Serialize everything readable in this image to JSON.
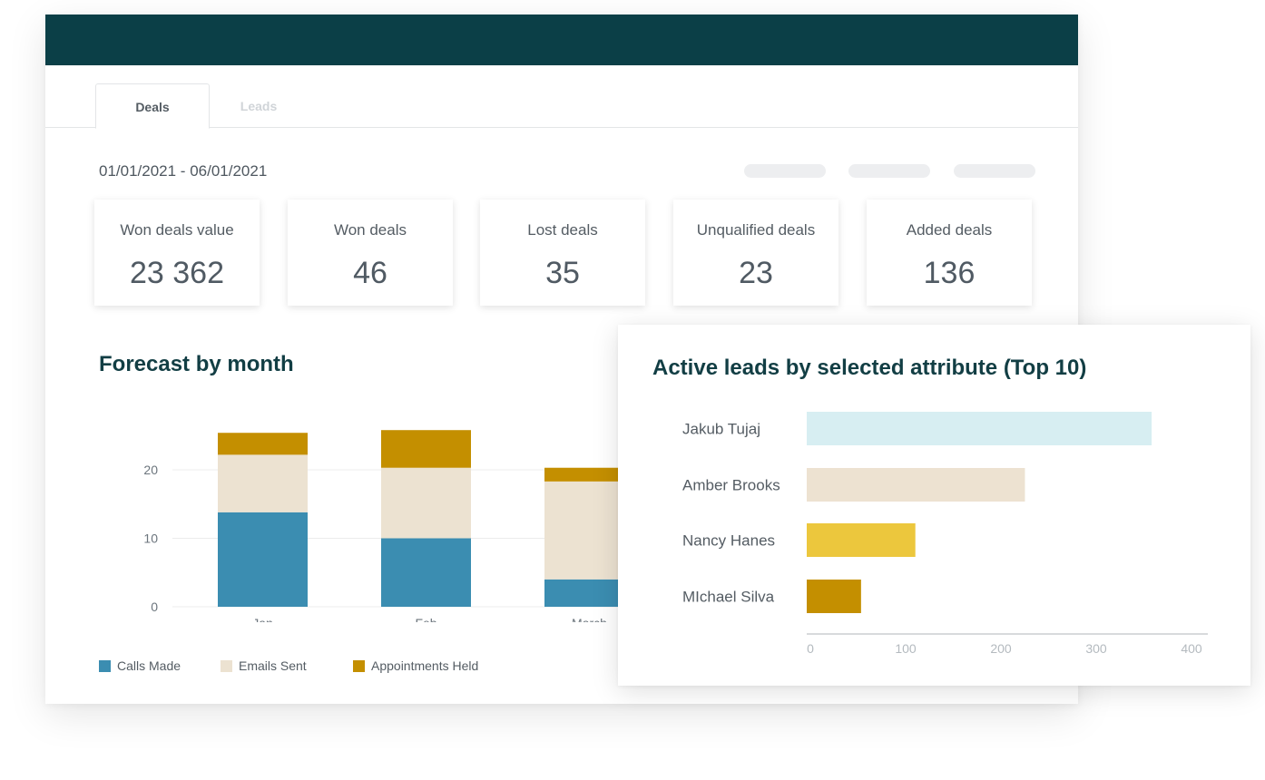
{
  "tabs": [
    {
      "label": "Deals",
      "active": true
    },
    {
      "label": "Leads",
      "active": false
    }
  ],
  "date_range": "01/01/2021 - 06/01/2021",
  "stats": [
    {
      "label": "Won deals value",
      "value": "23 362"
    },
    {
      "label": "Won deals",
      "value": "46"
    },
    {
      "label": "Lost deals",
      "value": "35"
    },
    {
      "label": "Unqualified deals",
      "value": "23"
    },
    {
      "label": "Added deals",
      "value": "136"
    }
  ],
  "forecast": {
    "title": "Forecast by month",
    "legend": [
      {
        "label": "Calls Made",
        "color": "#3b8db1"
      },
      {
        "label": "Emails Sent",
        "color": "#ece2d1"
      },
      {
        "label": "Appointments Held",
        "color": "#c48f00"
      }
    ]
  },
  "leads": {
    "title": "Active leads by selected attribute (Top 10)"
  },
  "chart_data": [
    {
      "type": "bar",
      "stacked": true,
      "title": "Forecast by month",
      "categories": [
        "Jan",
        "Feb",
        "March"
      ],
      "series": [
        {
          "name": "Calls Made",
          "values": [
            13.8,
            10,
            4
          ],
          "color": "#3b8db1"
        },
        {
          "name": "Emails Sent",
          "values": [
            8.4,
            10.3,
            14.3
          ],
          "color": "#ece2d1"
        },
        {
          "name": "Appointments Held",
          "values": [
            3.2,
            5.5,
            2
          ],
          "color": "#c48f00"
        }
      ],
      "yticks": [
        0,
        10,
        20
      ],
      "ylim": [
        0,
        26
      ],
      "grid": true,
      "legend": "bottom-left"
    },
    {
      "type": "bar",
      "orientation": "horizontal",
      "title": "Active leads by selected attribute (Top 10)",
      "categories": [
        "Jakub Tujaj",
        "Amber Brooks",
        "Nancy Hanes",
        "MIchael Silva"
      ],
      "values": [
        362,
        229,
        114,
        57
      ],
      "colors": [
        "#d7eef2",
        "#ede2d1",
        "#ecc73d",
        "#c48f00"
      ],
      "xticks": [
        0,
        100,
        200,
        300,
        400
      ],
      "xlim": [
        0,
        420
      ]
    }
  ]
}
